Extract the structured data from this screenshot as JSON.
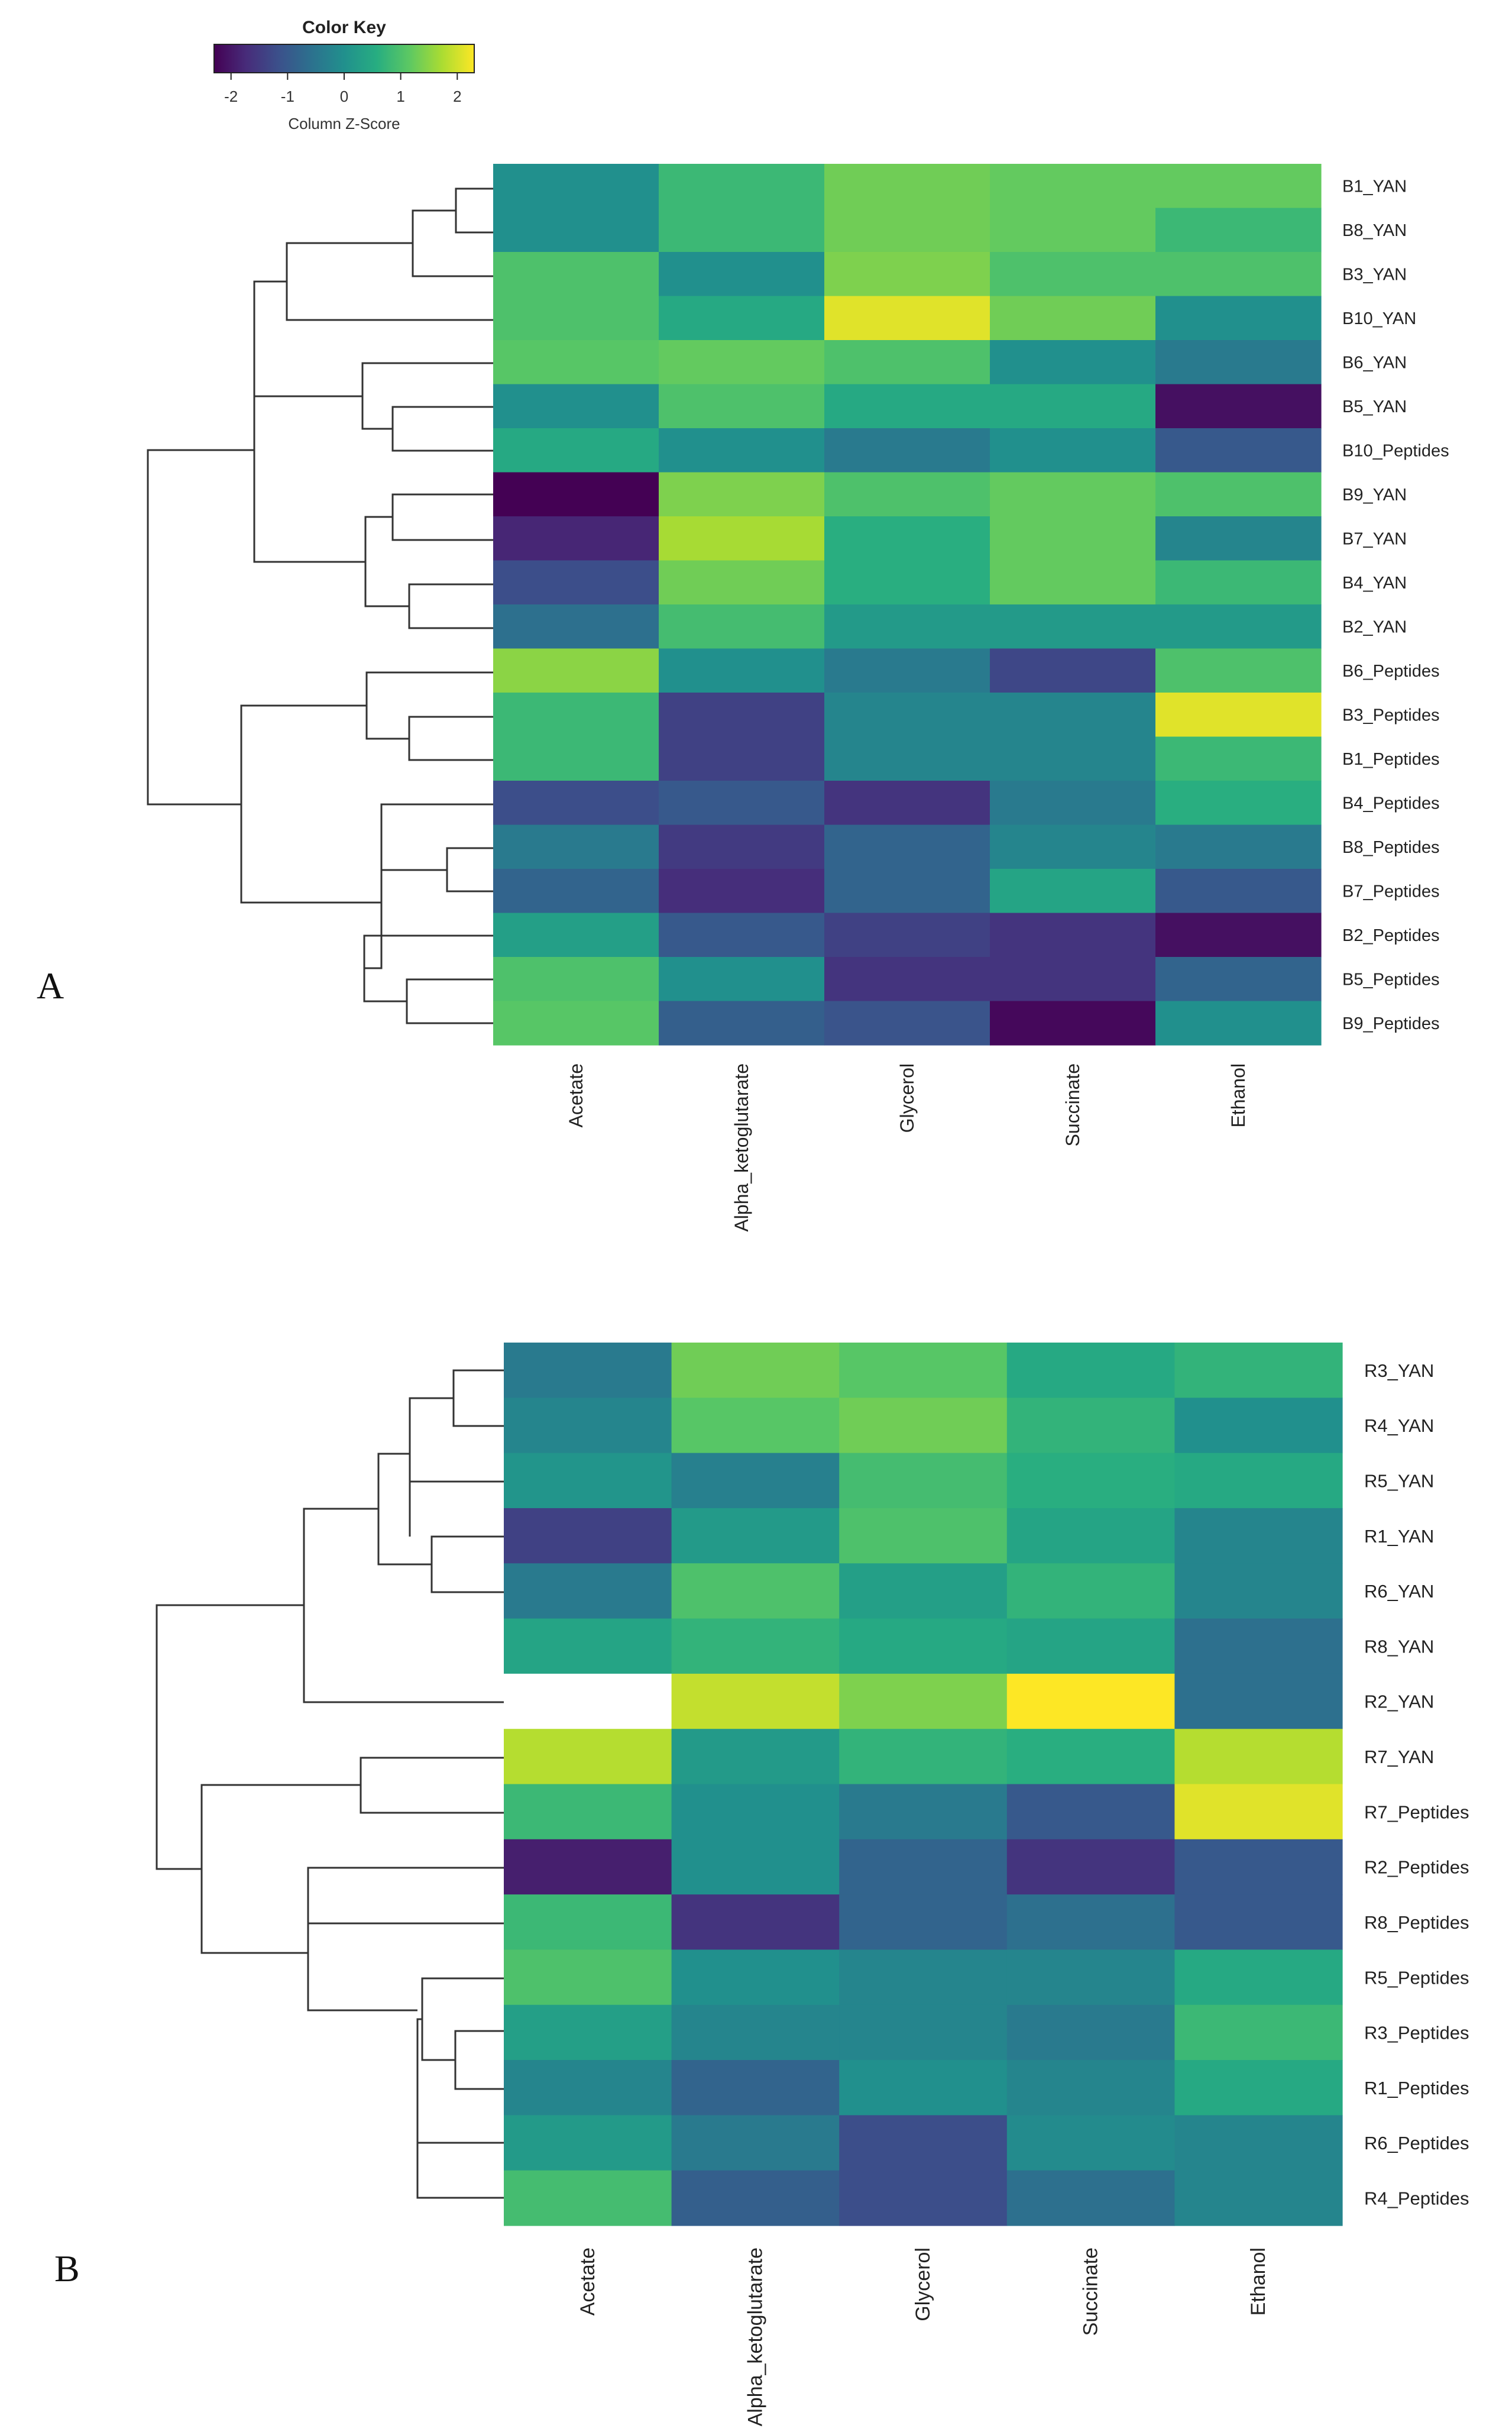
{
  "color_key": {
    "title": "Color Key",
    "xlabel": "Column Z-Score",
    "range": [
      -2.3,
      2.3
    ],
    "ticks": [
      "-2",
      "-1",
      "0",
      "1",
      "2"
    ],
    "tick_values": [
      -2,
      -1,
      0,
      1,
      2
    ]
  },
  "chart_data": [
    {
      "type": "heatmap",
      "panel": "A",
      "columns": [
        "Acetate",
        "Alpha_ketoglutarate",
        "Glycerol",
        "Succinate",
        "Ethanol"
      ],
      "rows": [
        "B1_YAN",
        "B8_YAN",
        "B3_YAN",
        "B10_YAN",
        "B6_YAN",
        "B5_YAN",
        "B10_Peptides",
        "B9_YAN",
        "B7_YAN",
        "B4_YAN",
        "B2_YAN",
        "B6_Peptides",
        "B3_Peptides",
        "B1_Peptides",
        "B4_Peptides",
        "B8_Peptides",
        "B7_Peptides",
        "B2_Peptides",
        "B5_Peptides",
        "B9_Peptides"
      ],
      "values": [
        [
          0.0,
          0.8,
          1.3,
          1.2,
          1.2
        ],
        [
          0.0,
          0.8,
          1.3,
          1.2,
          0.8
        ],
        [
          1.0,
          0.0,
          1.4,
          1.0,
          1.0
        ],
        [
          1.0,
          0.5,
          2.1,
          1.3,
          0.0
        ],
        [
          1.1,
          1.2,
          1.0,
          0.0,
          -0.4
        ],
        [
          0.0,
          1.0,
          0.5,
          0.5,
          -2.1
        ],
        [
          0.5,
          0.0,
          -0.4,
          0.0,
          -1.0
        ],
        [
          -2.4,
          1.4,
          1.0,
          1.2,
          1.0
        ],
        [
          -1.8,
          1.7,
          0.6,
          1.2,
          -0.2
        ],
        [
          -1.2,
          1.3,
          0.6,
          1.2,
          0.8
        ],
        [
          -0.6,
          0.9,
          0.2,
          0.2,
          0.2
        ],
        [
          1.5,
          0.0,
          -0.4,
          -1.3,
          1.0
        ],
        [
          0.8,
          -1.4,
          -0.2,
          -0.2,
          2.1
        ],
        [
          0.8,
          -1.4,
          -0.2,
          -0.2,
          0.8
        ],
        [
          -1.2,
          -1.0,
          -1.6,
          -0.4,
          0.6
        ],
        [
          -0.4,
          -1.5,
          -0.8,
          -0.2,
          -0.4
        ],
        [
          -0.8,
          -1.7,
          -0.8,
          0.4,
          -1.0
        ],
        [
          0.3,
          -1.0,
          -1.4,
          -1.6,
          -2.1
        ],
        [
          1.0,
          0.0,
          -1.6,
          -1.6,
          -0.8
        ],
        [
          1.1,
          -0.9,
          -1.1,
          -2.2,
          0.0
        ]
      ],
      "missing": []
    },
    {
      "type": "heatmap",
      "panel": "B",
      "columns": [
        "Acetate",
        "Alpha_ketoglutarate",
        "Glycerol",
        "Succinate",
        "Ethanol"
      ],
      "rows": [
        "R3_YAN",
        "R4_YAN",
        "R5_YAN",
        "R1_YAN",
        "R6_YAN",
        "R8_YAN",
        "R2_YAN",
        "R7_YAN",
        "R7_Peptides",
        "R2_Peptides",
        "R8_Peptides",
        "R5_Peptides",
        "R3_Peptides",
        "R1_Peptides",
        "R6_Peptides",
        "R4_Peptides"
      ],
      "values": [
        [
          -0.4,
          1.3,
          1.1,
          0.5,
          0.7
        ],
        [
          -0.2,
          1.1,
          1.3,
          0.7,
          0.0
        ],
        [
          0.1,
          -0.3,
          0.9,
          0.6,
          0.5
        ],
        [
          -1.4,
          0.2,
          1.0,
          0.4,
          -0.2
        ],
        [
          -0.4,
          1.0,
          0.3,
          0.7,
          -0.2
        ],
        [
          0.4,
          0.7,
          0.5,
          0.4,
          -0.6
        ],
        [
          null,
          1.9,
          1.4,
          2.3,
          -0.6
        ],
        [
          1.8,
          0.2,
          0.7,
          0.6,
          1.8
        ],
        [
          0.8,
          0.0,
          -0.4,
          -1.0,
          2.1
        ],
        [
          -1.9,
          0.0,
          -0.8,
          -1.6,
          -1.0
        ],
        [
          0.8,
          -1.6,
          -0.8,
          -0.6,
          -1.0
        ],
        [
          1.0,
          0.0,
          -0.2,
          -0.2,
          0.5
        ],
        [
          0.3,
          -0.2,
          -0.2,
          -0.4,
          0.8
        ],
        [
          -0.2,
          -0.8,
          0.0,
          -0.2,
          0.5
        ],
        [
          0.2,
          -0.4,
          -1.2,
          -0.1,
          -0.2
        ],
        [
          0.9,
          -0.9,
          -1.2,
          -0.6,
          -0.2
        ]
      ],
      "missing": [
        [
          6,
          0
        ]
      ]
    }
  ],
  "panels": {
    "A": {
      "label": "A"
    },
    "B": {
      "label": "B"
    }
  }
}
